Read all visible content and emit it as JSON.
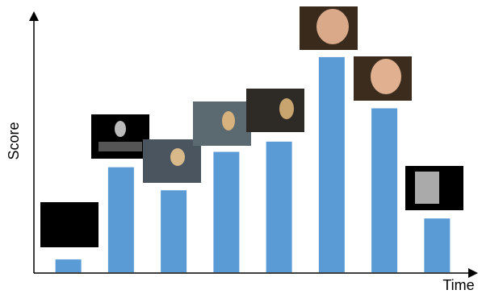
{
  "chart_data": {
    "type": "bar",
    "xlabel": "Time",
    "ylabel": "Score",
    "values": [
      5,
      41,
      32,
      47,
      51,
      84,
      64,
      21
    ],
    "color": "#5b9bd5",
    "ylim": [
      0,
      100
    ]
  }
}
